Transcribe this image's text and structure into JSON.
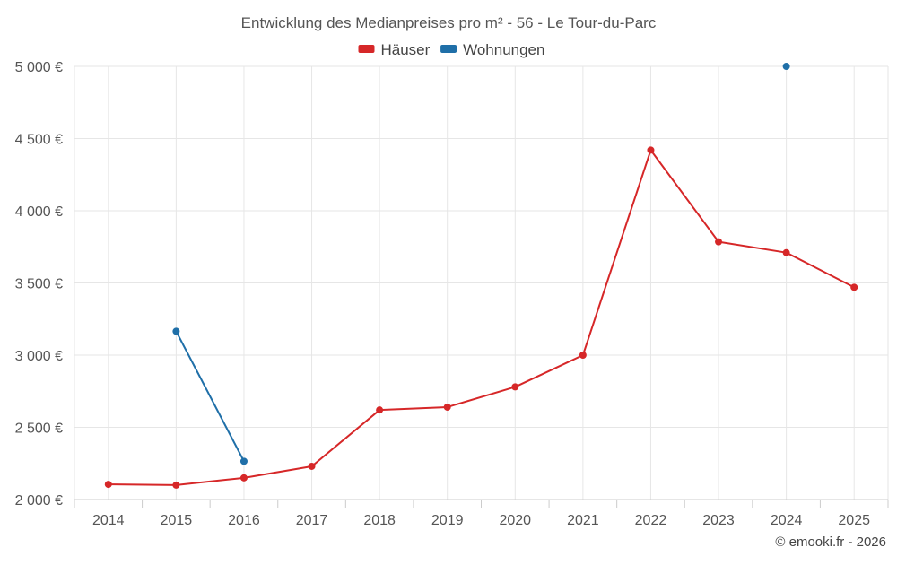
{
  "chart_data": {
    "type": "line",
    "title": "Entwicklung des Medianpreises pro m² - 56 - Le Tour-du-Parc",
    "categories": [
      "2014",
      "2015",
      "2016",
      "2017",
      "2018",
      "2019",
      "2020",
      "2021",
      "2022",
      "2023",
      "2024",
      "2025"
    ],
    "series": [
      {
        "name": "Häuser",
        "color": "#d62728",
        "values": [
          2105,
          2100,
          2150,
          2230,
          2620,
          2640,
          2780,
          3000,
          4420,
          3785,
          3710,
          3470
        ]
      },
      {
        "name": "Wohnungen",
        "color": "#1f6fa8",
        "values": [
          null,
          3165,
          2265,
          null,
          null,
          null,
          null,
          null,
          null,
          null,
          5000,
          null
        ]
      }
    ],
    "ylim": [
      2000,
      5000
    ],
    "yticks": [
      2000,
      2500,
      3000,
      3500,
      4000,
      4500,
      5000
    ],
    "ytick_labels": [
      "2 000 €",
      "2 500 €",
      "3 000 €",
      "3 500 €",
      "4 000 €",
      "4 500 €",
      "5 000 €"
    ],
    "xlabel": "",
    "ylabel": "",
    "grid": true,
    "legend_position": "top-center"
  },
  "credit": "© emooki.fr - 2026"
}
